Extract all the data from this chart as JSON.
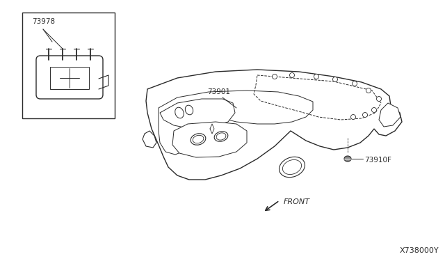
{
  "bg_color": "#ffffff",
  "line_color": "#2a2a2a",
  "figure_width": 6.4,
  "figure_height": 3.72,
  "dpi": 100,
  "catalog_number": "X738000Y"
}
